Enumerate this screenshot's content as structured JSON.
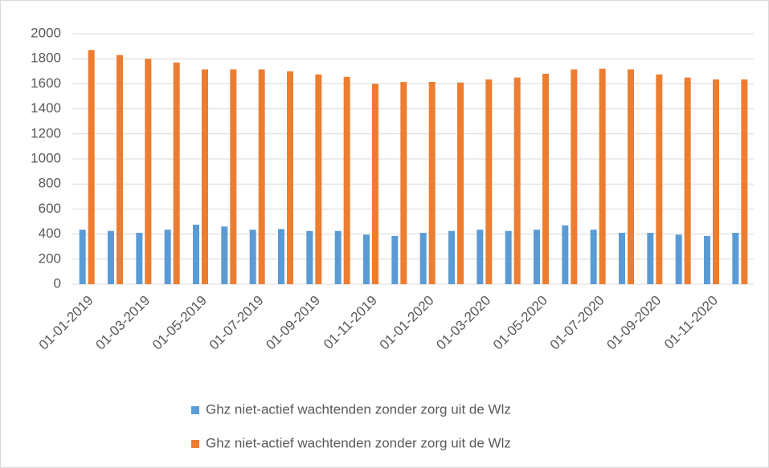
{
  "chart_data": {
    "type": "bar",
    "categories": [
      "01-01-2019",
      null,
      "01-03-2019",
      null,
      "01-05-2019",
      null,
      "01-07-2019",
      null,
      "01-09-2019",
      null,
      "01-11-2019",
      null,
      "01-01-2020",
      null,
      "01-03-2020",
      null,
      "01-05-2020",
      null,
      "01-07-2020",
      null,
      "01-09-2020",
      null,
      "01-11-2020",
      null
    ],
    "series": [
      {
        "name": "Ghz niet-actief wachtenden zonder zorg uit de Wlz",
        "color": "#5b9bd5",
        "values": [
          435,
          425,
          410,
          435,
          475,
          460,
          435,
          440,
          425,
          425,
          395,
          385,
          410,
          425,
          435,
          425,
          435,
          470,
          435,
          410,
          410,
          395,
          385,
          410
        ]
      },
      {
        "name": "Ghz niet-actief wachtenden zonder zorg uit de Wlz",
        "color": "#ed7d31",
        "values": [
          1870,
          1830,
          1800,
          1770,
          1715,
          1715,
          1715,
          1700,
          1675,
          1655,
          1600,
          1615,
          1615,
          1610,
          1635,
          1650,
          1680,
          1715,
          1720,
          1715,
          1675,
          1650,
          1635,
          1635
        ]
      }
    ],
    "ylim": [
      0,
      2000
    ],
    "yticks": [
      0,
      200,
      400,
      600,
      800,
      1000,
      1200,
      1400,
      1600,
      1800,
      2000
    ],
    "grid": true
  }
}
